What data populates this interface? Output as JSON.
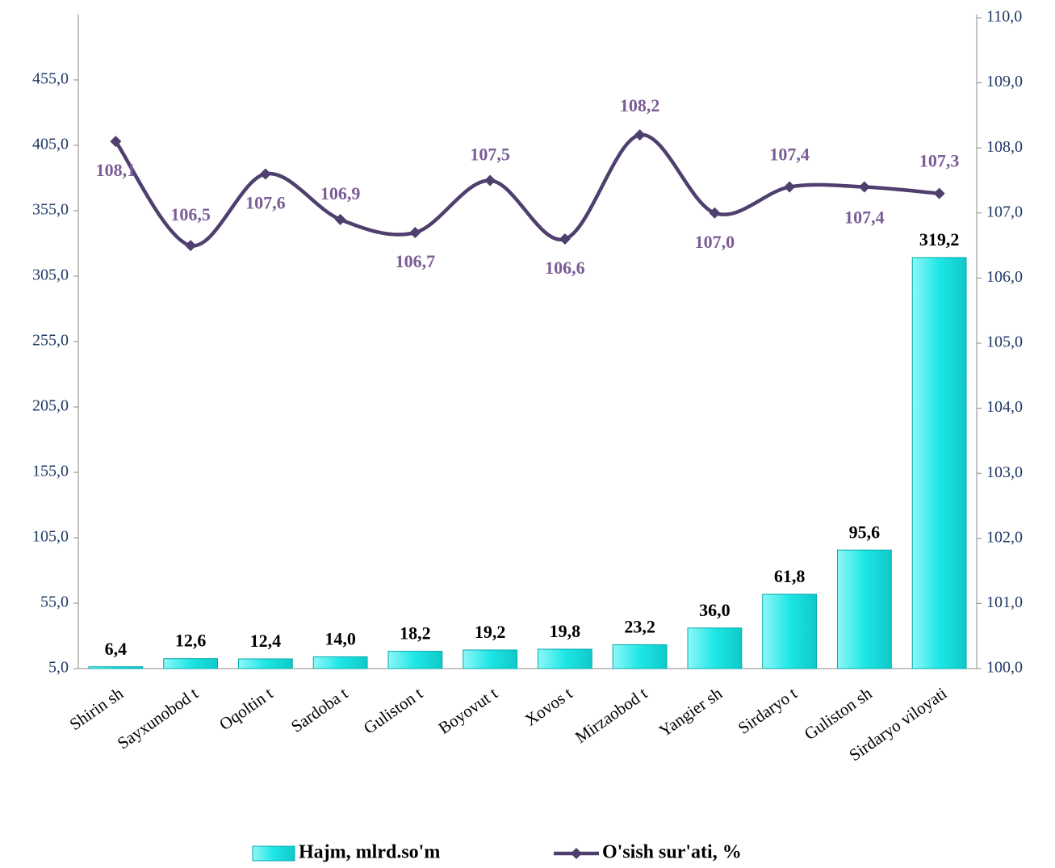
{
  "chart_data": {
    "type": "bar",
    "categories": [
      "Shirin sh",
      "Sayxunobod t",
      "Oqoltin t",
      "Sardoba t",
      "Guliston t",
      "Boyovut t",
      "Xovos t",
      "Mirzaobod t",
      "Yangier sh",
      "Sirdaryo t",
      "Guliston sh",
      "Sirdaryo viloyati"
    ],
    "ylim": [
      5,
      505
    ],
    "yticks": [
      {
        "value": 5,
        "label": "5,0"
      },
      {
        "value": 55,
        "label": "55,0"
      },
      {
        "value": 105,
        "label": "105,0"
      },
      {
        "value": 155,
        "label": "155,0"
      },
      {
        "value": 205,
        "label": "205,0"
      },
      {
        "value": 255,
        "label": "255,0"
      },
      {
        "value": 305,
        "label": "305,0"
      },
      {
        "value": 355,
        "label": "355,0"
      },
      {
        "value": 405,
        "label": "405,0"
      },
      {
        "value": 455,
        "label": "455,0"
      }
    ],
    "y2lim": [
      100,
      110
    ],
    "y2ticks": [
      {
        "value": 100,
        "label": "100,0"
      },
      {
        "value": 101,
        "label": "101,0"
      },
      {
        "value": 102,
        "label": "102,0"
      },
      {
        "value": 103,
        "label": "103,0"
      },
      {
        "value": 104,
        "label": "104,0"
      },
      {
        "value": 105,
        "label": "105,0"
      },
      {
        "value": 106,
        "label": "106,0"
      },
      {
        "value": 107,
        "label": "107,0"
      },
      {
        "value": 108,
        "label": "108,0"
      },
      {
        "value": 109,
        "label": "109,0"
      },
      {
        "value": 110,
        "label": "110,0"
      }
    ],
    "series": [
      {
        "name": "Hajm, mlrd.so'm",
        "type": "bar",
        "color": "#2ee8e8",
        "values": [
          6.4,
          12.6,
          12.4,
          14.0,
          18.2,
          19.2,
          19.8,
          23.2,
          36.0,
          61.8,
          95.6,
          319.2
        ],
        "value_labels": [
          "6,4",
          "12,6",
          "12,4",
          "14,0",
          "18,2",
          "19,2",
          "19,8",
          "23,2",
          "36,0",
          "61,8",
          "95,6",
          "319,2"
        ]
      },
      {
        "name": "O'sish sur'ati, %",
        "type": "line",
        "axis": "y2",
        "color": "#4f3f6e",
        "values": [
          108.1,
          106.5,
          107.6,
          106.9,
          106.7,
          107.5,
          106.6,
          108.2,
          107.0,
          107.4,
          107.4,
          107.3
        ],
        "value_labels": [
          "108,1",
          "106,5",
          "107,6",
          "106,9",
          "106,7",
          "107,5",
          "106,6",
          "108,2",
          "107,0",
          "107,4",
          "107,4",
          "107,3"
        ]
      }
    ]
  }
}
